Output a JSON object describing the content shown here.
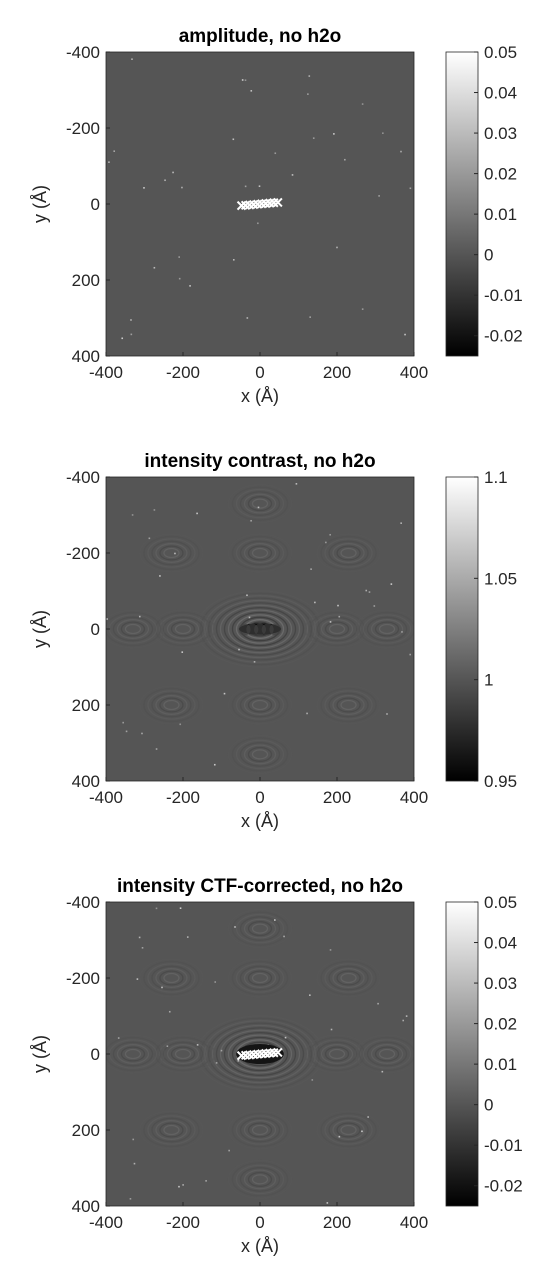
{
  "chart_data": [
    {
      "type": "heatmap",
      "title": "amplitude, no h2o",
      "xlabel": "x (Å)",
      "ylabel": "y (Å)",
      "xlim": [
        -400,
        400
      ],
      "ylim": [
        -400,
        400
      ],
      "y_axis_direction": "reversed",
      "x_ticks": [
        "-400",
        "-200",
        "0",
        "200",
        "400"
      ],
      "y_ticks": [
        "-400",
        "-200",
        "0",
        "200",
        "400"
      ],
      "colormap": "gray",
      "background_level": 0,
      "feature": "bright helical molecule centered near (0,0) spanning x≈-50 to 50",
      "colorbar": {
        "min": -0.025,
        "max": 0.05,
        "ticks": [
          "0.05",
          "0.04",
          "0.03",
          "0.02",
          "0.01",
          "0",
          "-0.01",
          "-0.02"
        ]
      }
    },
    {
      "type": "heatmap",
      "title": "intensity contrast, no h2o",
      "xlabel": "x (Å)",
      "ylabel": "y (Å)",
      "xlim": [
        -400,
        400
      ],
      "ylim": [
        -400,
        400
      ],
      "y_axis_direction": "reversed",
      "x_ticks": [
        "-400",
        "-200",
        "0",
        "200",
        "400"
      ],
      "y_ticks": [
        "-400",
        "-200",
        "0",
        "200",
        "400"
      ],
      "colormap": "gray",
      "background_level": 1,
      "feature": "dark molecule at center surrounded by concentric fringe rings",
      "colorbar": {
        "min": 0.95,
        "max": 1.1,
        "ticks": [
          "1.1",
          "1.05",
          "1",
          "0.95"
        ]
      }
    },
    {
      "type": "heatmap",
      "title": "intensity CTF-corrected, no h2o",
      "xlabel": "x (Å)",
      "ylabel": "y (Å)",
      "xlim": [
        -400,
        400
      ],
      "ylim": [
        -400,
        400
      ],
      "y_axis_direction": "reversed",
      "x_ticks": [
        "-400",
        "-200",
        "0",
        "200",
        "400"
      ],
      "y_ticks": [
        "-400",
        "-200",
        "0",
        "200",
        "400"
      ],
      "colormap": "gray",
      "background_level": 0,
      "feature": "bright molecule at center with dark halo and surrounding fringe rings",
      "colorbar": {
        "min": -0.025,
        "max": 0.05,
        "ticks": [
          "0.05",
          "0.04",
          "0.03",
          "0.02",
          "0.01",
          "0",
          "-0.01",
          "-0.02"
        ]
      }
    }
  ]
}
